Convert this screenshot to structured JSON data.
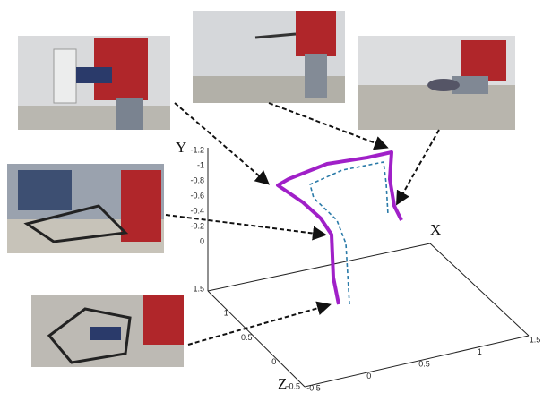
{
  "axes": {
    "y": {
      "label": "Y",
      "ticks": [
        "-1.2",
        "-1",
        "-0.8",
        "-0.6",
        "-0.4",
        "-0.2",
        "0"
      ]
    },
    "x": {
      "label": "X",
      "ticks": [
        "-0.5",
        "0",
        "0.5",
        "1",
        "1.5"
      ]
    },
    "z": {
      "label": "Z",
      "ticks": [
        "1.5",
        "1",
        "0.5",
        "0",
        "-0.5"
      ]
    }
  }
}
